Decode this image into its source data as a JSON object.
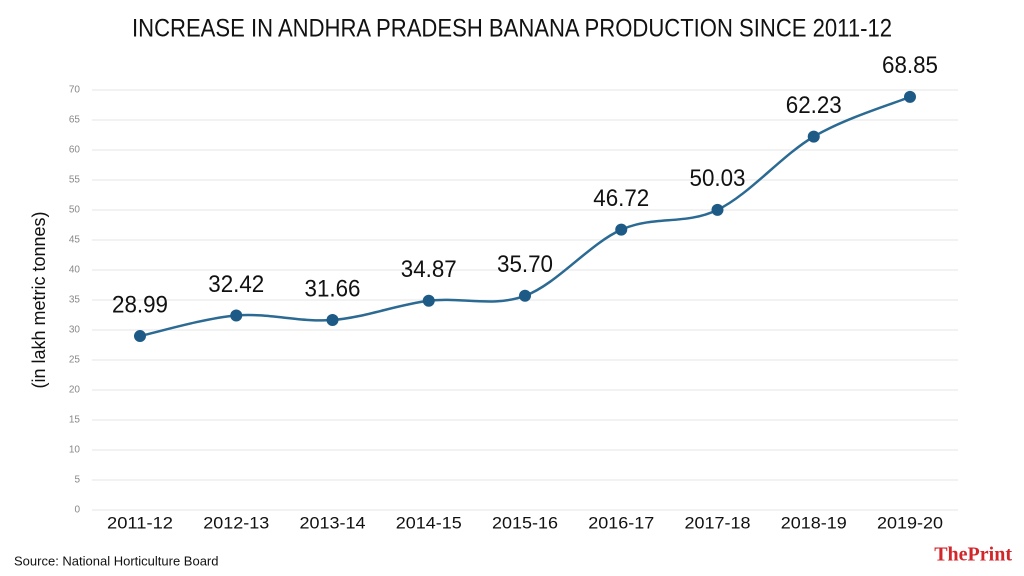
{
  "chart_data": {
    "type": "line",
    "title": "INCREASE IN ANDHRA PRADESH BANANA PRODUCTION SINCE 2011-12",
    "y_label": "(in lakh metric tonnes)",
    "source": "Source: National Horticulture Board",
    "brand": "ThePrint",
    "categories": [
      "2011-12",
      "2012-13",
      "2013-14",
      "2014-15",
      "2015-16",
      "2016-17",
      "2017-18",
      "2018-19",
      "2019-20"
    ],
    "series": [
      {
        "color": "#2b6a93",
        "values": [
          28.99,
          32.42,
          31.66,
          34.87,
          35.7,
          46.72,
          50.03,
          62.23,
          68.85
        ],
        "value_labels": [
          "28.99",
          "32.42",
          "31.66",
          "34.87",
          "35.70",
          "46.72",
          "50.03",
          "62.23",
          "68.85"
        ]
      }
    ],
    "ylim": [
      0,
      70
    ],
    "yticks": [
      0,
      5,
      10,
      15,
      20,
      25,
      30,
      35,
      40,
      45,
      50,
      55,
      60,
      65,
      70
    ],
    "grid": true,
    "smooth": true
  }
}
